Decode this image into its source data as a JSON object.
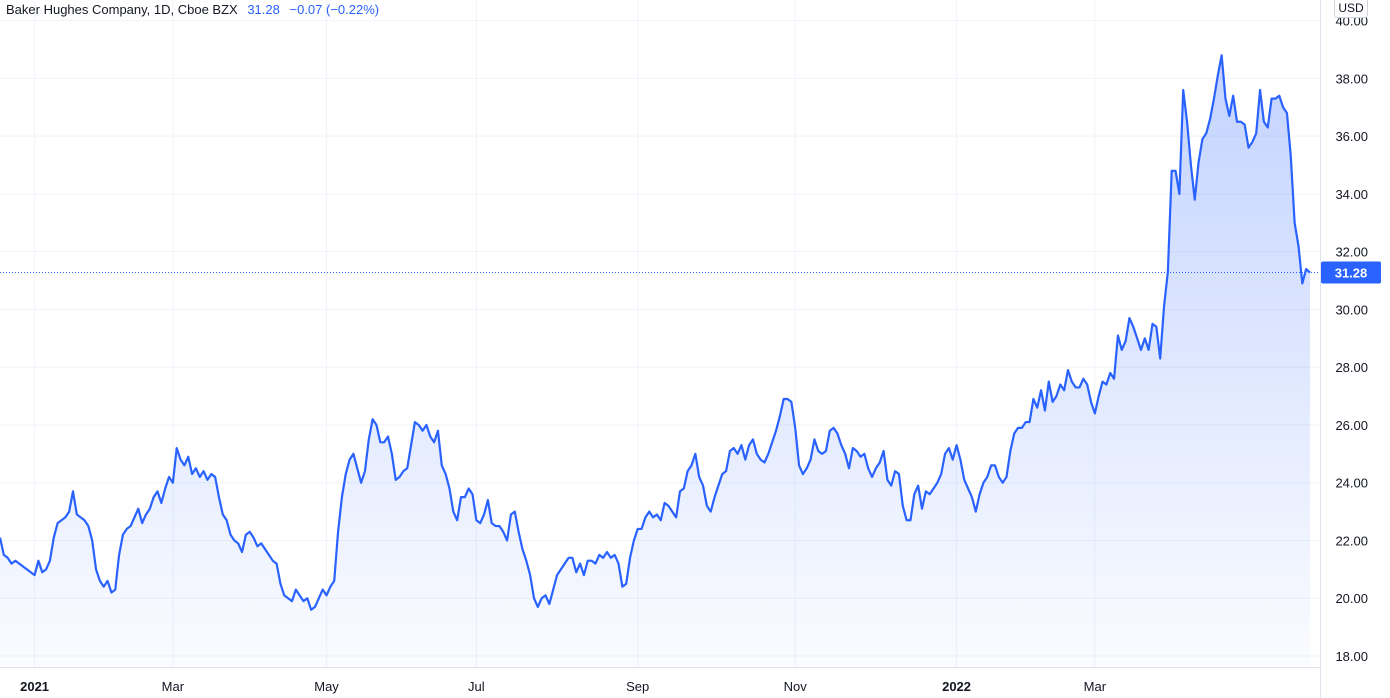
{
  "legend": {
    "symbol": "Baker Hughes Company, 1D, Cboe BZX",
    "price": "31.28",
    "change": "−0.07 (−0.22%)"
  },
  "currency": "USD",
  "colors": {
    "line": "#2962ff",
    "grid": "#f0f3fa",
    "axis_text": "#131722",
    "badge": "#2962ff"
  },
  "chart_data": {
    "type": "area",
    "title": "",
    "xlabel": "",
    "ylabel": "",
    "ylim": [
      18,
      40
    ],
    "y_ticks": [
      "18.00",
      "20.00",
      "22.00",
      "24.00",
      "26.00",
      "28.00",
      "30.00",
      "32.00",
      "34.00",
      "36.00",
      "38.00",
      "40.00"
    ],
    "x_ticks": [
      {
        "label": "2021",
        "bold": true,
        "index": 9
      },
      {
        "label": "Mar",
        "bold": false,
        "index": 45
      },
      {
        "label": "May",
        "bold": false,
        "index": 85
      },
      {
        "label": "Jul",
        "bold": false,
        "index": 124
      },
      {
        "label": "Sep",
        "bold": false,
        "index": 166
      },
      {
        "label": "Nov",
        "bold": false,
        "index": 207
      },
      {
        "label": "2022",
        "bold": true,
        "index": 249
      },
      {
        "label": "Mar",
        "bold": false,
        "index": 285
      }
    ],
    "last_price": 31.28,
    "series": [
      {
        "values": [
          22.1,
          21.5,
          21.4,
          21.2,
          21.3,
          21.2,
          21.1,
          21.0,
          20.9,
          20.8,
          21.3,
          20.9,
          21.0,
          21.3,
          22.1,
          22.6,
          22.7,
          22.8,
          23.0,
          23.7,
          22.9,
          22.8,
          22.7,
          22.5,
          22.0,
          21.0,
          20.6,
          20.4,
          20.6,
          20.2,
          20.3,
          21.5,
          22.2,
          22.4,
          22.5,
          22.8,
          23.1,
          22.6,
          22.9,
          23.1,
          23.5,
          23.7,
          23.3,
          23.8,
          24.2,
          24.0,
          25.2,
          24.8,
          24.6,
          24.9,
          24.3,
          24.5,
          24.2,
          24.4,
          24.1,
          24.3,
          24.2,
          23.5,
          22.9,
          22.7,
          22.2,
          22.0,
          21.9,
          21.6,
          22.2,
          22.3,
          22.1,
          21.8,
          21.9,
          21.7,
          21.5,
          21.3,
          21.2,
          20.5,
          20.1,
          20.0,
          19.9,
          20.3,
          20.1,
          19.9,
          20.0,
          19.6,
          19.7,
          20.0,
          20.3,
          20.1,
          20.4,
          20.6,
          22.3,
          23.5,
          24.3,
          24.8,
          25.0,
          24.5,
          24.0,
          24.4,
          25.5,
          26.2,
          26.0,
          25.4,
          25.4,
          25.6,
          25.0,
          24.1,
          24.2,
          24.4,
          24.5,
          25.3,
          26.1,
          26.0,
          25.8,
          26.0,
          25.6,
          25.4,
          25.8,
          24.6,
          24.3,
          23.8,
          23.0,
          22.7,
          23.5,
          23.5,
          23.8,
          23.6,
          22.7,
          22.6,
          22.9,
          23.4,
          22.6,
          22.5,
          22.5,
          22.3,
          22.0,
          22.9,
          23.0,
          22.3,
          21.7,
          21.3,
          20.8,
          20.0,
          19.7,
          20.0,
          20.1,
          19.8,
          20.3,
          20.8,
          21.0,
          21.2,
          21.4,
          21.4,
          20.9,
          21.2,
          20.8,
          21.3,
          21.3,
          21.2,
          21.5,
          21.4,
          21.6,
          21.4,
          21.5,
          21.2,
          20.4,
          20.5,
          21.4,
          22.0,
          22.4,
          22.4,
          22.8,
          23.0,
          22.8,
          22.9,
          22.7,
          23.3,
          23.2,
          23.0,
          22.8,
          23.7,
          23.8,
          24.4,
          24.6,
          25.0,
          24.2,
          23.9,
          23.2,
          23.0,
          23.5,
          23.9,
          24.3,
          24.4,
          25.1,
          25.2,
          25.0,
          25.3,
          24.8,
          25.3,
          25.5,
          25.0,
          24.8,
          24.7,
          25.0,
          25.4,
          25.8,
          26.3,
          26.9,
          26.9,
          26.8,
          25.9,
          24.6,
          24.3,
          24.5,
          24.8,
          25.5,
          25.1,
          25.0,
          25.1,
          25.8,
          25.9,
          25.7,
          25.3,
          25.0,
          24.5,
          25.2,
          25.1,
          24.9,
          25.0,
          24.5,
          24.2,
          24.5,
          24.7,
          25.1,
          24.1,
          23.9,
          24.4,
          24.3,
          23.2,
          22.7,
          22.7,
          23.6,
          23.9,
          23.1,
          23.7,
          23.6,
          23.8,
          24.0,
          24.3,
          25.0,
          25.2,
          24.8,
          25.3,
          24.8,
          24.1,
          23.8,
          23.5,
          23.0,
          23.6,
          24.0,
          24.2,
          24.6,
          24.6,
          24.2,
          24.0,
          24.2,
          25.1,
          25.7,
          25.9,
          25.9,
          26.1,
          26.1,
          26.9,
          26.6,
          27.2,
          26.5,
          27.5,
          26.8,
          27.0,
          27.4,
          27.2,
          27.9,
          27.5,
          27.3,
          27.3,
          27.6,
          27.4,
          26.8,
          26.4,
          27.0,
          27.5,
          27.4,
          27.8,
          27.6,
          29.1,
          28.6,
          28.9,
          29.7,
          29.4,
          29.0,
          28.6,
          29.0,
          28.6,
          29.5,
          29.4,
          28.3,
          30.1,
          31.3,
          34.8,
          34.8,
          34.0,
          37.6,
          36.5,
          35.0,
          33.8,
          35.1,
          35.9,
          36.1,
          36.6,
          37.3,
          38.1,
          38.8,
          37.3,
          36.7,
          37.4,
          36.5,
          36.5,
          36.4,
          35.6,
          35.8,
          36.1,
          37.6,
          36.5,
          36.3,
          37.3,
          37.3,
          37.4,
          37.0,
          36.8,
          35.3,
          33.0,
          32.2,
          30.9,
          31.4,
          31.28
        ]
      }
    ]
  }
}
